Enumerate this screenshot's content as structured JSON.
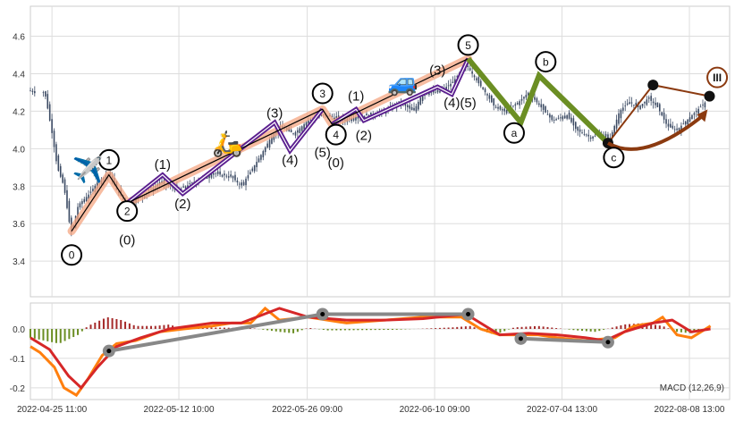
{
  "chart_data": {
    "type": "candlestick-with-elliott-waves-and-macd",
    "x_unit": "bar index",
    "xlim": [
      0,
      146
    ],
    "x_ticks": [
      {
        "x": 4.5,
        "label": "2022-04-25 11:00"
      },
      {
        "x": 31,
        "label": "2022-05-12 10:00"
      },
      {
        "x": 57.8,
        "label": "2022-05-26 09:00"
      },
      {
        "x": 84.4,
        "label": "2022-06-10 09:00"
      },
      {
        "x": 111,
        "label": "2022-07-04 13:00"
      },
      {
        "x": 137.6,
        "label": "2022-08-08 13:00"
      }
    ],
    "price": {
      "ylim": [
        3.21,
        4.76
      ],
      "y_ticks": [
        "3.4",
        "3.6",
        "3.8",
        "4.0",
        "4.2",
        "4.4",
        "4.6"
      ],
      "candle_color": "#3b4a63",
      "close_path": [
        [
          0,
          4.31
        ],
        [
          3,
          4.3
        ],
        [
          4.4,
          4.1
        ],
        [
          5.6,
          3.9
        ],
        [
          7,
          3.8
        ],
        [
          8,
          3.62
        ],
        [
          8.6,
          3.55
        ],
        [
          10,
          3.7
        ],
        [
          12,
          3.75
        ],
        [
          14,
          3.82
        ],
        [
          16.4,
          3.87
        ],
        [
          18,
          3.78
        ],
        [
          20,
          3.71
        ],
        [
          22,
          3.73
        ],
        [
          24,
          3.76
        ],
        [
          27,
          3.82
        ],
        [
          29,
          3.8
        ],
        [
          31,
          3.78
        ],
        [
          34,
          3.82
        ],
        [
          38,
          3.87
        ],
        [
          42,
          3.85
        ],
        [
          44,
          3.8
        ],
        [
          46,
          3.88
        ],
        [
          48,
          3.96
        ],
        [
          50,
          4.05
        ],
        [
          52,
          4.12
        ],
        [
          55,
          4.08
        ],
        [
          58,
          4.15
        ],
        [
          61,
          4.18
        ],
        [
          63,
          4.17
        ],
        [
          65,
          4.15
        ],
        [
          68,
          4.17
        ],
        [
          71,
          4.18
        ],
        [
          74,
          4.2
        ],
        [
          77,
          4.25
        ],
        [
          80,
          4.2
        ],
        [
          82,
          4.3
        ],
        [
          85,
          4.3
        ],
        [
          88,
          4.35
        ],
        [
          91,
          4.45
        ],
        [
          93,
          4.37
        ],
        [
          95,
          4.3
        ],
        [
          97,
          4.22
        ],
        [
          99,
          4.2
        ],
        [
          102,
          4.25
        ],
        [
          104,
          4.3
        ],
        [
          106,
          4.24
        ],
        [
          109,
          4.15
        ],
        [
          112,
          4.18
        ],
        [
          114,
          4.1
        ],
        [
          117,
          4.06
        ],
        [
          119,
          4.08
        ],
        [
          121,
          4.05
        ],
        [
          123,
          4.2
        ],
        [
          125,
          4.25
        ],
        [
          127,
          4.22
        ],
        [
          129,
          4.27
        ],
        [
          131,
          4.22
        ],
        [
          133,
          4.12
        ],
        [
          135,
          4.1
        ],
        [
          137,
          4.15
        ],
        [
          139,
          4.2
        ],
        [
          141,
          4.25
        ]
      ],
      "primary_wave": {
        "color": "#f4a582",
        "points": [
          [
            8.6,
            3.56
          ],
          [
            16.4,
            3.86
          ],
          [
            20.2,
            3.71
          ],
          [
            61,
            4.21
          ],
          [
            63,
            4.13
          ],
          [
            91.4,
            4.48
          ]
        ]
      },
      "sub_waves": {
        "color": "#5b1f8f",
        "segments": [
          [
            [
              20.2,
              3.71
            ],
            [
              27.6,
              3.86
            ],
            [
              31.8,
              3.76
            ],
            [
              51,
              4.14
            ],
            [
              54.2,
              3.99
            ],
            [
              61,
              4.21
            ]
          ],
          [
            [
              63,
              4.13
            ],
            [
              68,
              4.21
            ],
            [
              69.6,
              4.15
            ],
            [
              85,
              4.33
            ],
            [
              88,
              4.29
            ],
            [
              91.4,
              4.48
            ]
          ]
        ]
      },
      "correction": {
        "color": "#6b8e23",
        "points": [
          [
            91.4,
            4.48
          ],
          [
            102.4,
            4.14
          ],
          [
            106.2,
            4.39
          ],
          [
            120.6,
            4.03
          ]
        ]
      },
      "projection": {
        "color": "#8b3a10",
        "points": [
          [
            120.6,
            4.03
          ],
          [
            130,
            4.34
          ],
          [
            141.8,
            4.28
          ]
        ],
        "arrow_from": [
          120.6,
          4.03
        ],
        "arrow_ctrl": [
          128,
          3.92
        ],
        "arrow_to": [
          141.4,
          4.21
        ]
      },
      "circle_labels": [
        {
          "text": "0",
          "x": 8.6,
          "y": 3.433
        },
        {
          "text": "1",
          "x": 16.4,
          "y": 3.94
        },
        {
          "text": "2",
          "x": 20.2,
          "y": 3.667
        },
        {
          "text": "3",
          "x": 61,
          "y": 4.295
        },
        {
          "text": "4",
          "x": 63.8,
          "y": 4.075
        },
        {
          "text": "5",
          "x": 91.4,
          "y": 4.553
        },
        {
          "text": "a",
          "x": 101,
          "y": 4.084
        },
        {
          "text": "b",
          "x": 107.6,
          "y": 4.464
        },
        {
          "text": "c",
          "x": 121.8,
          "y": 3.953
        },
        {
          "text": "III",
          "x": 143.4,
          "y": 4.38,
          "color": "#8b3a10"
        }
      ],
      "paren_labels": [
        {
          "text": "(0)",
          "x": 20.2,
          "y": 3.512
        },
        {
          "text": "(1)",
          "x": 27.6,
          "y": 3.916
        },
        {
          "text": "(2)",
          "x": 31.8,
          "y": 3.705
        },
        {
          "text": "(3)",
          "x": 51,
          "y": 4.19
        },
        {
          "text": "(4)",
          "x": 54.2,
          "y": 3.94
        },
        {
          "text": "(5)",
          "x": 61,
          "y": 3.98
        },
        {
          "text": "(0)",
          "x": 63.8,
          "y": 3.925
        },
        {
          "text": "(1)",
          "x": 68,
          "y": 4.28
        },
        {
          "text": "(2)",
          "x": 69.6,
          "y": 4.07
        },
        {
          "text": "(3)",
          "x": 85,
          "y": 4.42
        },
        {
          "text": "(4)",
          "x": 88,
          "y": 4.245
        },
        {
          "text": "(5)",
          "x": 91.4,
          "y": 4.245
        }
      ],
      "icons": [
        {
          "name": "airplane-icon",
          "glyph": "✈️",
          "x": 12,
          "y": 3.89
        },
        {
          "name": "scooter-icon",
          "glyph": "🛵",
          "x": 41.2,
          "y": 4.03
        },
        {
          "name": "car-icon",
          "glyph": "🚙",
          "x": 77.8,
          "y": 4.357
        }
      ]
    },
    "macd": {
      "label": "MACD (12,26,9)",
      "ylim": [
        -0.24,
        0.088
      ],
      "y_ticks": [
        "-0.2",
        "-0.1",
        "0.0"
      ],
      "macd_color": "#ff7f0e",
      "signal_color": "#d62728",
      "hist_pos_color": "#a52a2a",
      "hist_neg_color": "#6b8e23",
      "macd_line": [
        [
          0,
          -0.06
        ],
        [
          2,
          -0.08
        ],
        [
          5,
          -0.13
        ],
        [
          7,
          -0.2
        ],
        [
          9.6,
          -0.225
        ],
        [
          12,
          -0.17
        ],
        [
          15,
          -0.09
        ],
        [
          18,
          -0.05
        ],
        [
          22,
          -0.04
        ],
        [
          27,
          -0.01
        ],
        [
          32,
          0
        ],
        [
          38,
          0.01
        ],
        [
          42,
          0.02
        ],
        [
          46,
          0.02
        ],
        [
          49,
          0.07
        ],
        [
          52,
          0.03
        ],
        [
          58,
          0.04
        ],
        [
          66,
          0.02
        ],
        [
          74,
          0.03
        ],
        [
          82,
          0.04
        ],
        [
          90,
          0.04
        ],
        [
          94,
          0
        ],
        [
          98,
          -0.02
        ],
        [
          102,
          -0.02
        ],
        [
          106,
          -0.02
        ],
        [
          110,
          -0.03
        ],
        [
          116,
          -0.04
        ],
        [
          122,
          -0.03
        ],
        [
          126,
          0.01
        ],
        [
          130,
          0.02
        ],
        [
          132,
          0.04
        ],
        [
          135,
          -0.02
        ],
        [
          138,
          -0.03
        ],
        [
          142,
          0.01
        ]
      ],
      "signal_line": [
        [
          0,
          -0.03
        ],
        [
          4,
          -0.07
        ],
        [
          8,
          -0.16
        ],
        [
          10.6,
          -0.2
        ],
        [
          14,
          -0.13
        ],
        [
          18,
          -0.06
        ],
        [
          23,
          -0.03
        ],
        [
          29,
          0
        ],
        [
          38,
          0.02
        ],
        [
          44,
          0.02
        ],
        [
          52,
          0.07
        ],
        [
          58,
          0.04
        ],
        [
          66,
          0.03
        ],
        [
          74,
          0.03
        ],
        [
          82,
          0.035
        ],
        [
          91,
          0.05
        ],
        [
          98,
          -0.02
        ],
        [
          104,
          -0.015
        ],
        [
          110,
          -0.02
        ],
        [
          116,
          -0.03
        ],
        [
          120,
          -0.04
        ],
        [
          124,
          -0.01
        ],
        [
          130,
          0.02
        ],
        [
          134,
          0.03
        ],
        [
          138,
          -0.01
        ],
        [
          142,
          0
        ]
      ],
      "histogram": [
        [
          0,
          -0.03
        ],
        [
          6,
          -0.05
        ],
        [
          10,
          -0.02
        ],
        [
          12,
          0.01
        ],
        [
          16,
          0.04
        ],
        [
          19,
          0.03
        ],
        [
          22,
          0.01
        ],
        [
          26,
          0.01
        ],
        [
          29,
          0.015
        ],
        [
          31,
          0.005
        ],
        [
          36,
          0.005
        ],
        [
          46,
          0.003
        ],
        [
          52,
          -0.01
        ],
        [
          55,
          -0.015
        ],
        [
          58,
          0.004
        ],
        [
          62,
          -0.005
        ],
        [
          76,
          -0.003
        ],
        [
          88,
          0.005
        ],
        [
          92,
          0.01
        ],
        [
          95,
          -0.01
        ],
        [
          97,
          -0.02
        ],
        [
          101,
          0.005
        ],
        [
          106,
          0.01
        ],
        [
          114,
          -0.005
        ],
        [
          118,
          -0.01
        ],
        [
          124,
          0.015
        ],
        [
          128,
          0.02
        ],
        [
          132,
          0.01
        ],
        [
          135,
          -0.01
        ],
        [
          138,
          -0.015
        ],
        [
          142,
          0.005
        ]
      ],
      "divergences": [
        [
          [
            16.4,
            -0.075
          ],
          [
            61,
            0.05
          ],
          [
            91.4,
            0.05
          ]
        ],
        [
          [
            102.4,
            -0.033
          ],
          [
            120.6,
            -0.045
          ]
        ]
      ]
    }
  }
}
